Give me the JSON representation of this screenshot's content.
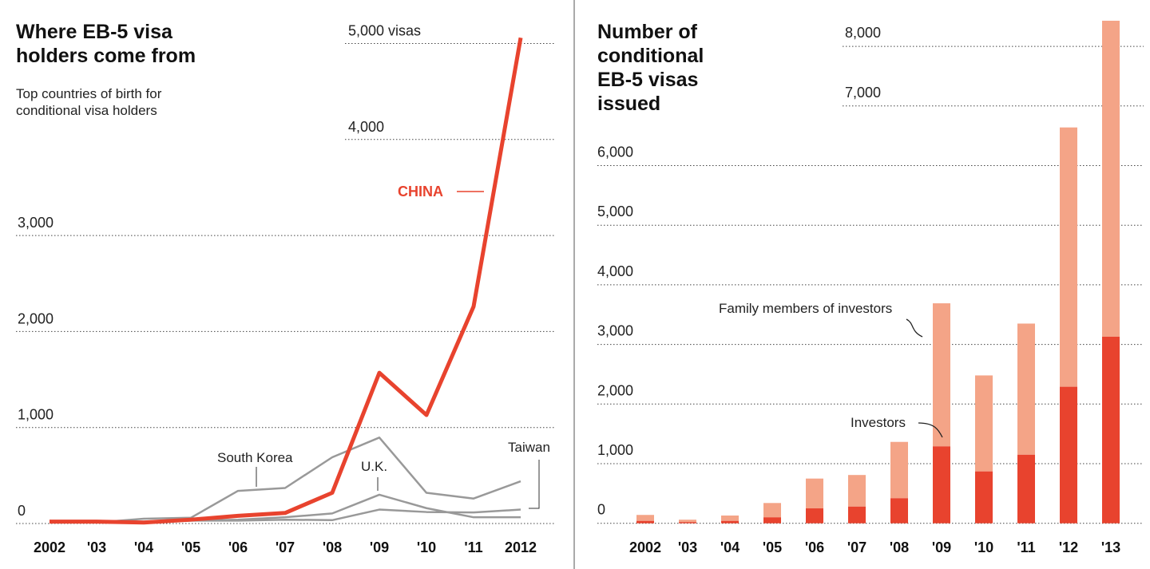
{
  "colors": {
    "china": "#e8432e",
    "other": "#999999",
    "investors": "#e8432e",
    "family": "#f4a487"
  },
  "chart_data": [
    {
      "type": "line",
      "title": "Where EB-5 visa holders come from",
      "subtitle": "Top countries of birth for conditional visa holders",
      "categories": [
        "2002",
        "'03",
        "'04",
        "'05",
        "'06",
        "'07",
        "'08",
        "'09",
        "'10",
        "'11",
        "2012"
      ],
      "yticks": [
        {
          "v": 0,
          "label": "0"
        },
        {
          "v": 1000,
          "label": "1,000"
        },
        {
          "v": 2000,
          "label": "2,000"
        },
        {
          "v": 3000,
          "label": "3,000"
        },
        {
          "v": 4000,
          "label": "4,000"
        },
        {
          "v": 5000,
          "label": "5,000 visas"
        }
      ],
      "ylim": [
        0,
        5000
      ],
      "series": [
        {
          "name": "CHINA",
          "values": [
            20,
            20,
            10,
            40,
            80,
            110,
            320,
            1570,
            1130,
            2260,
            5060
          ]
        },
        {
          "name": "South Korea",
          "values": [
            10,
            10,
            50,
            60,
            340,
            370,
            690,
            895,
            320,
            260,
            440
          ]
        },
        {
          "name": "U.K.",
          "values": [
            10,
            10,
            20,
            30,
            40,
            65,
            105,
            300,
            160,
            65,
            65
          ]
        },
        {
          "name": "Taiwan",
          "values": [
            10,
            10,
            20,
            30,
            30,
            40,
            35,
            145,
            120,
            115,
            145
          ]
        }
      ]
    },
    {
      "type": "bar",
      "stacked": true,
      "title": "Number of conditional EB-5 visas issued",
      "categories": [
        "2002",
        "'03",
        "'04",
        "'05",
        "'06",
        "'07",
        "'08",
        "'09",
        "'10",
        "'11",
        "'12",
        "'13"
      ],
      "yticks": [
        {
          "v": 0,
          "label": "0"
        },
        {
          "v": 1000,
          "label": "1,000"
        },
        {
          "v": 2000,
          "label": "2,000"
        },
        {
          "v": 3000,
          "label": "3,000"
        },
        {
          "v": 4000,
          "label": "4,000"
        },
        {
          "v": 5000,
          "label": "5,000"
        },
        {
          "v": 6000,
          "label": "6,000"
        },
        {
          "v": 7000,
          "label": "7,000"
        },
        {
          "v": 8000,
          "label": "8,000"
        }
      ],
      "ylim": [
        0,
        8000
      ],
      "series": [
        {
          "name": "Investors",
          "values": [
            40,
            20,
            40,
            100,
            250,
            280,
            420,
            1290,
            870,
            1150,
            2290,
            3130
          ]
        },
        {
          "name": "Family members of investors",
          "values": [
            100,
            40,
            90,
            240,
            500,
            530,
            945,
            2400,
            1610,
            2200,
            4350,
            5300
          ]
        }
      ]
    }
  ]
}
